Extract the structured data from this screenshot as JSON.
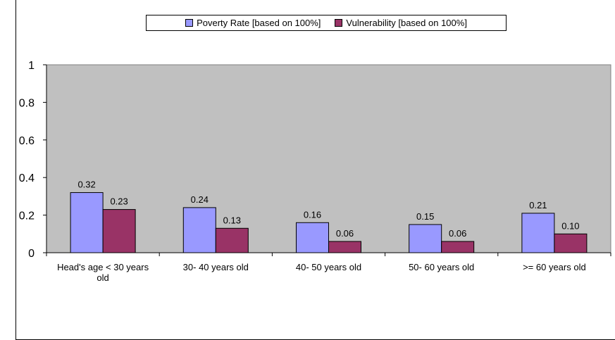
{
  "chart_data": {
    "type": "bar",
    "categories": [
      "Head's age < 30 years old",
      "30- 40 years old",
      "40- 50 years old",
      "50- 60 years old",
      ">= 60 years old"
    ],
    "series": [
      {
        "name": "Poverty Rate [based on 100%]",
        "values": [
          0.32,
          0.24,
          0.16,
          0.15,
          0.21
        ],
        "labels": [
          "0.32",
          "0.24",
          "0.16",
          "0.15",
          "0.21"
        ],
        "color": "#9999ff"
      },
      {
        "name": "Vulnerability [based on 100%]",
        "values": [
          0.23,
          0.13,
          0.06,
          0.06,
          0.1
        ],
        "labels": [
          "0.23",
          "0.13",
          "0.06",
          "0.06",
          "0.10"
        ],
        "color": "#993366"
      }
    ],
    "yticks": [
      "0",
      "0.2",
      "0.4",
      "0.6",
      "0.8",
      "1"
    ],
    "ylim": [
      0,
      1
    ],
    "plot_background": "#c0c0c0",
    "grid": false,
    "legend_position": "top"
  }
}
